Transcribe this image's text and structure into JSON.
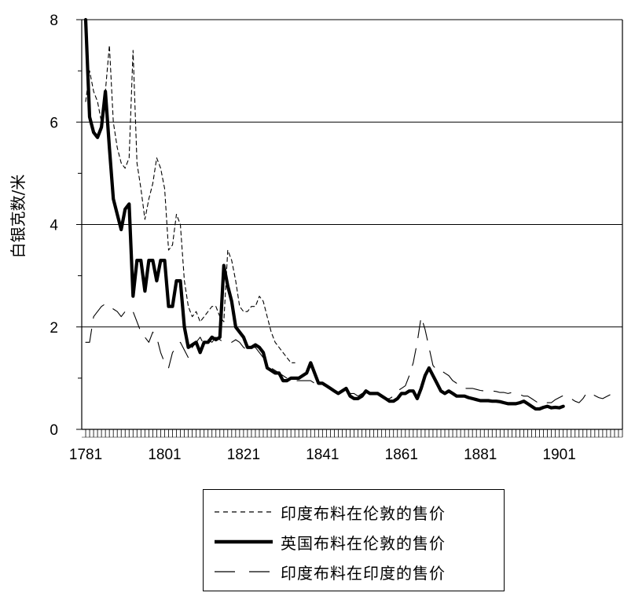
{
  "chart_data": {
    "type": "line",
    "title": "",
    "xlabel": "",
    "ylabel": "白银克数/米",
    "xlim": [
      1780,
      1917
    ],
    "ylim": [
      0,
      8
    ],
    "x_ticks": [
      1781,
      1801,
      1821,
      1841,
      1861,
      1881,
      1901
    ],
    "y_ticks": [
      0,
      2,
      4,
      6,
      8
    ],
    "grid": "horizontal",
    "legend_position": "bottom",
    "series": [
      {
        "name": "印度布料在伦敦的售价",
        "style": "short-dash",
        "x": [
          1781,
          1782,
          1783,
          1784,
          1785,
          1786,
          1787,
          1788,
          1789,
          1790,
          1791,
          1792,
          1793,
          1794,
          1795,
          1796,
          1797,
          1798,
          1799,
          1800,
          1801,
          1802,
          1803,
          1804,
          1805,
          1806,
          1807,
          1808,
          1809,
          1810,
          1811,
          1812,
          1813,
          1814,
          1815,
          1816,
          1817,
          1818,
          1819,
          1820,
          1821,
          1822,
          1823,
          1824,
          1825,
          1826,
          1827,
          1828,
          1829,
          1830,
          1831,
          1832,
          1833,
          1834
        ],
        "values": [
          6.4,
          7.0,
          6.6,
          6.4,
          6.0,
          6.6,
          7.5,
          6.0,
          5.5,
          5.2,
          5.1,
          5.3,
          7.4,
          5.2,
          4.7,
          4.1,
          4.5,
          4.8,
          5.3,
          5.1,
          4.7,
          3.5,
          3.6,
          4.2,
          4.0,
          2.9,
          2.4,
          2.2,
          2.3,
          2.1,
          2.2,
          2.3,
          2.4,
          2.4,
          2.2,
          2.1,
          3.5,
          3.3,
          2.9,
          2.4,
          2.3,
          2.3,
          2.4,
          2.4,
          2.6,
          2.5,
          2.2,
          1.9,
          1.7,
          1.6,
          1.5,
          1.4,
          1.3,
          1.3
        ]
      },
      {
        "name": "英国布料在伦敦的售价",
        "style": "thick-solid",
        "x": [
          1781,
          1782,
          1783,
          1784,
          1785,
          1786,
          1787,
          1788,
          1789,
          1790,
          1791,
          1792,
          1793,
          1794,
          1795,
          1796,
          1797,
          1798,
          1799,
          1800,
          1801,
          1802,
          1803,
          1804,
          1805,
          1806,
          1807,
          1808,
          1809,
          1810,
          1811,
          1812,
          1813,
          1814,
          1815,
          1816,
          1817,
          1818,
          1819,
          1820,
          1821,
          1822,
          1823,
          1824,
          1825,
          1826,
          1827,
          1828,
          1829,
          1830,
          1831,
          1832,
          1833,
          1834,
          1835,
          1836,
          1837,
          1838,
          1839,
          1840,
          1841,
          1842,
          1843,
          1844,
          1845,
          1846,
          1847,
          1848,
          1849,
          1850,
          1851,
          1852,
          1853,
          1854,
          1855,
          1856,
          1857,
          1858,
          1859,
          1860,
          1861,
          1862,
          1863,
          1864,
          1865,
          1866,
          1867,
          1868,
          1869,
          1870,
          1871,
          1872,
          1873,
          1874,
          1875,
          1876,
          1877,
          1878,
          1879,
          1880,
          1881,
          1882,
          1883,
          1884,
          1885,
          1886,
          1887,
          1888,
          1889,
          1890,
          1891,
          1892,
          1893,
          1894,
          1895,
          1896,
          1897,
          1898,
          1899,
          1900,
          1901,
          1902
        ],
        "values": [
          8.0,
          6.1,
          5.8,
          5.7,
          5.9,
          6.6,
          5.5,
          4.5,
          4.2,
          3.9,
          4.3,
          4.4,
          2.6,
          3.3,
          3.3,
          2.7,
          3.3,
          3.3,
          2.9,
          3.3,
          3.3,
          2.4,
          2.4,
          2.9,
          2.9,
          2.0,
          1.6,
          1.65,
          1.7,
          1.5,
          1.7,
          1.7,
          1.8,
          1.75,
          1.8,
          3.2,
          2.8,
          2.5,
          2.0,
          1.9,
          1.8,
          1.6,
          1.6,
          1.65,
          1.6,
          1.5,
          1.2,
          1.15,
          1.1,
          1.1,
          0.95,
          0.95,
          1.0,
          1.0,
          1.0,
          1.05,
          1.1,
          1.3,
          1.1,
          0.9,
          0.9,
          0.85,
          0.8,
          0.75,
          0.7,
          0.75,
          0.8,
          0.65,
          0.6,
          0.6,
          0.65,
          0.75,
          0.7,
          0.7,
          0.7,
          0.65,
          0.6,
          0.55,
          0.55,
          0.6,
          0.7,
          0.7,
          0.75,
          0.75,
          0.6,
          0.8,
          1.05,
          1.2,
          1.05,
          0.9,
          0.75,
          0.7,
          0.75,
          0.7,
          0.65,
          0.65,
          0.65,
          0.62,
          0.6,
          0.58,
          0.56,
          0.56,
          0.56,
          0.55,
          0.55,
          0.54,
          0.52,
          0.5,
          0.5,
          0.5,
          0.52,
          0.55,
          0.5,
          0.45,
          0.4,
          0.4,
          0.43,
          0.45,
          0.42,
          0.43,
          0.42,
          0.45
        ]
      },
      {
        "name": "印度布料在印度的售价",
        "style": "long-dash",
        "x": [
          1781,
          1782,
          1783,
          1784,
          1785,
          1786,
          1787,
          1788,
          1789,
          1790,
          1791,
          1792,
          1793,
          1794,
          1795,
          1796,
          1797,
          1798,
          1799,
          1800,
          1801,
          1802,
          1803,
          1804,
          1805,
          1806,
          1807,
          1808,
          1809,
          1810,
          1811,
          1812,
          1813,
          1814,
          1815,
          1816,
          1817,
          1818,
          1819,
          1820,
          1821,
          1822,
          1823,
          1824,
          1825,
          1826,
          1827,
          1828,
          1829,
          1830,
          1831,
          1832,
          1833,
          1834,
          1835,
          1836,
          1837,
          1838,
          1839,
          1840,
          1841,
          1842,
          1843,
          1844,
          1845,
          1846,
          1847,
          1848,
          1849,
          1850,
          1851,
          1852,
          1853,
          1854,
          1855,
          1856,
          1857,
          1858,
          1859,
          1860,
          1861,
          1862,
          1863,
          1864,
          1865,
          1866,
          1867,
          1868,
          1869,
          1870,
          1871,
          1872,
          1873,
          1874,
          1875,
          1876,
          1877,
          1878,
          1879,
          1880,
          1881,
          1882,
          1883,
          1884,
          1885,
          1886,
          1887,
          1888,
          1889,
          1890,
          1891,
          1892,
          1893,
          1894,
          1895,
          1896,
          1897,
          1898,
          1899,
          1900,
          1901,
          1902,
          1903,
          1904,
          1905,
          1906,
          1907,
          1908,
          1909,
          1910,
          1911,
          1912,
          1913,
          1914,
          1915
        ],
        "values": [
          1.7,
          1.7,
          2.2,
          2.3,
          2.4,
          2.45,
          2.4,
          2.35,
          2.3,
          2.2,
          2.3,
          2.25,
          2.3,
          2.1,
          1.9,
          1.8,
          1.7,
          1.9,
          1.8,
          1.5,
          1.3,
          1.2,
          1.5,
          1.6,
          1.7,
          1.55,
          1.4,
          1.6,
          1.7,
          1.8,
          1.65,
          1.75,
          1.7,
          1.8,
          1.75,
          1.7,
          1.7,
          1.7,
          1.75,
          1.7,
          1.6,
          1.55,
          1.6,
          1.6,
          1.5,
          1.4,
          1.3,
          1.2,
          1.15,
          1.1,
          1.05,
          1.0,
          0.95,
          0.95,
          0.95,
          0.95,
          0.95,
          0.95,
          0.9,
          0.85,
          0.85,
          0.85,
          0.8,
          0.75,
          0.7,
          0.7,
          0.7,
          0.7,
          0.7,
          0.65,
          0.7,
          0.7,
          0.7,
          0.7,
          0.7,
          0.65,
          0.6,
          0.6,
          0.65,
          0.75,
          0.8,
          0.85,
          1.05,
          1.3,
          1.7,
          2.2,
          1.95,
          1.6,
          1.25,
          1.15,
          1.15,
          1.1,
          1.05,
          0.95,
          0.9,
          0.85,
          0.8,
          0.8,
          0.8,
          0.78,
          0.76,
          0.75,
          0.75,
          0.75,
          0.74,
          0.72,
          0.72,
          0.7,
          0.72,
          0.7,
          0.68,
          0.65,
          0.65,
          0.6,
          0.55,
          0.5,
          0.5,
          0.52,
          0.52,
          0.58,
          0.62,
          0.66,
          0.65,
          0.6,
          0.55,
          0.52,
          0.6,
          0.72,
          0.7,
          0.66,
          0.62,
          0.6,
          0.64,
          0.68,
          0.66
        ]
      }
    ]
  }
}
